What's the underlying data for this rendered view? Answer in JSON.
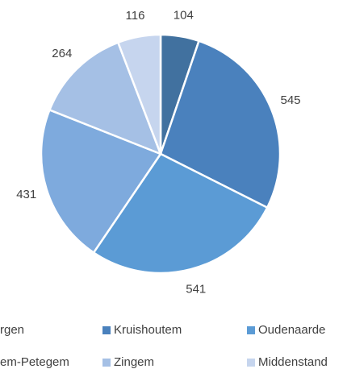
{
  "chart_data": {
    "type": "pie",
    "categories": [
      "rgen",
      "Kruishoutem",
      "Oudenaarde",
      "em-Petegem",
      "Zingem",
      "Middenstand"
    ],
    "values": [
      104,
      545,
      541,
      431,
      264,
      116
    ],
    "colors": [
      "#41719f",
      "#4a81bd",
      "#5b9bd5",
      "#7eaadd",
      "#a5c0e5",
      "#c6d5ee"
    ],
    "legend": "bottom"
  }
}
